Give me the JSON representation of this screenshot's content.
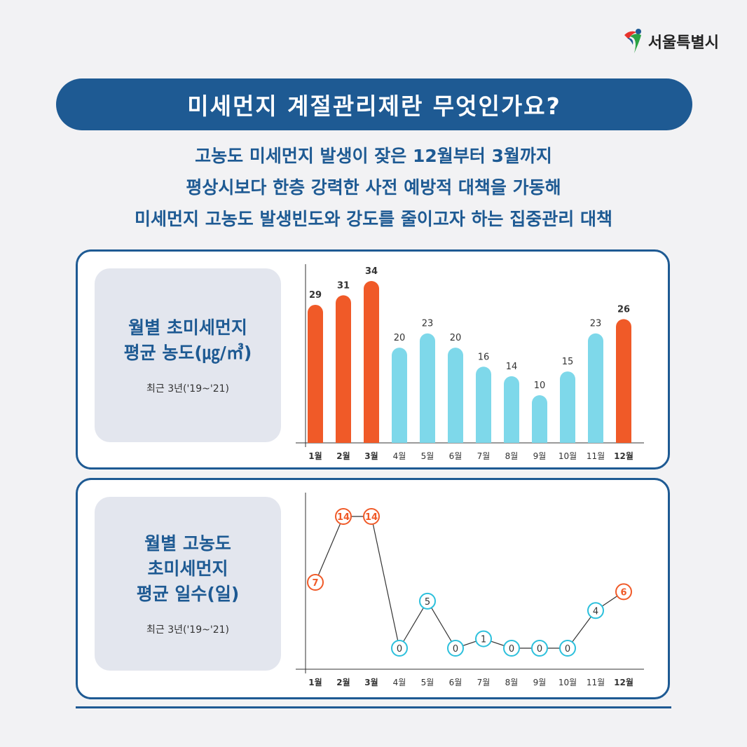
{
  "logo": {
    "name": "서울특별시"
  },
  "title": "미세먼지 계절관리제란 무엇인가요?",
  "subtitle_lines": [
    "고농도 미세먼지 발생이 잦은 12월부터 3월까지",
    "평상시보다 한층 강력한 사전 예방적 대책을 가동해",
    "미세먼지 고농도 발생빈도와 강도를 줄이고자 하는 집중관리 대책"
  ],
  "colors": {
    "primary": "#1e5a93",
    "highlight": "#f05a28",
    "normal_bar": "#7ed8ea",
    "normal_circle": "#2cc0dc"
  },
  "highlight_months": [
    "1월",
    "2월",
    "3월",
    "12월"
  ],
  "chart_data": [
    {
      "type": "bar",
      "title_lines": [
        "월별 초미세먼지",
        "평균 농도(㎍/㎥)"
      ],
      "note": "최근 3년('19~'21)",
      "categories": [
        "1월",
        "2월",
        "3월",
        "4월",
        "5월",
        "6월",
        "7월",
        "8월",
        "9월",
        "10월",
        "11월",
        "12월"
      ],
      "values": [
        29,
        31,
        34,
        20,
        23,
        20,
        16,
        14,
        10,
        15,
        23,
        26
      ],
      "ylim": [
        0,
        34
      ]
    },
    {
      "type": "line",
      "title_lines": [
        "월별 고농도",
        "초미세먼지",
        "평균 일수(일)"
      ],
      "note": "최근 3년('19~'21)",
      "categories": [
        "1월",
        "2월",
        "3월",
        "4월",
        "5월",
        "6월",
        "7월",
        "8월",
        "9월",
        "10월",
        "11월",
        "12월"
      ],
      "values": [
        7,
        14,
        14,
        0,
        5,
        0,
        1,
        0,
        0,
        0,
        4,
        6
      ],
      "ylim": [
        0,
        14
      ]
    }
  ]
}
